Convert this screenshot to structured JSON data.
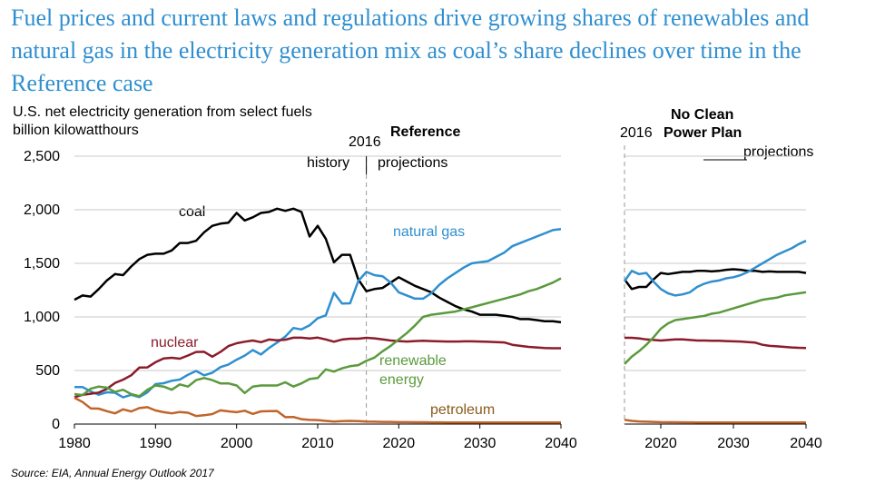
{
  "title": "Fuel prices and current laws and regulations drive growing shares of renewables and natural gas in the electricity generation mix as coal’s share declines over time in the Reference case",
  "source": "Source: EIA, Annual Energy Outlook 2017",
  "chart_data": [
    {
      "type": "line",
      "panel": "Reference",
      "subtitle_line1": "U.S. net electricity generation from select fuels",
      "subtitle_line2": "billion kilowatthours",
      "case_label": "Reference",
      "divider_year_label": "2016",
      "history_label": "history",
      "projections_label": "projections",
      "xlim": [
        1980,
        2040
      ],
      "ylim": [
        0,
        2500
      ],
      "x_ticks": [
        "1980",
        "1990",
        "2000",
        "2010",
        "2020",
        "2030",
        "2040"
      ],
      "y_ticks": [
        "0",
        "500",
        "1,000",
        "1,500",
        "2,000",
        "2,500"
      ],
      "series": [
        {
          "name": "coal",
          "label": "coal",
          "color": "#000000",
          "x": [
            1980,
            1981,
            1982,
            1983,
            1984,
            1985,
            1986,
            1987,
            1988,
            1989,
            1990,
            1991,
            1992,
            1993,
            1994,
            1995,
            1996,
            1997,
            1998,
            1999,
            2000,
            2001,
            2002,
            2003,
            2004,
            2005,
            2006,
            2007,
            2008,
            2009,
            2010,
            2011,
            2012,
            2013,
            2014,
            2015,
            2016,
            2017,
            2018,
            2019,
            2020,
            2021,
            2022,
            2023,
            2024,
            2025,
            2026,
            2027,
            2028,
            2029,
            2030,
            2031,
            2032,
            2033,
            2034,
            2035,
            2036,
            2037,
            2038,
            2039,
            2040
          ],
          "y": [
            1160,
            1200,
            1190,
            1260,
            1340,
            1400,
            1390,
            1470,
            1540,
            1580,
            1590,
            1590,
            1620,
            1690,
            1690,
            1710,
            1790,
            1850,
            1870,
            1880,
            1970,
            1900,
            1930,
            1970,
            1980,
            2010,
            1990,
            2010,
            1980,
            1750,
            1850,
            1730,
            1510,
            1580,
            1580,
            1350,
            1240,
            1260,
            1270,
            1320,
            1370,
            1330,
            1290,
            1260,
            1230,
            1180,
            1140,
            1100,
            1070,
            1050,
            1020,
            1020,
            1020,
            1010,
            1000,
            980,
            980,
            970,
            960,
            960,
            950
          ]
        },
        {
          "name": "natural gas",
          "label": "natural gas",
          "color": "#2f8fd0",
          "x": [
            1980,
            1981,
            1982,
            1983,
            1984,
            1985,
            1986,
            1987,
            1988,
            1989,
            1990,
            1991,
            1992,
            1993,
            1994,
            1995,
            1996,
            1997,
            1998,
            1999,
            2000,
            2001,
            2002,
            2003,
            2004,
            2005,
            2006,
            2007,
            2008,
            2009,
            2010,
            2011,
            2012,
            2013,
            2014,
            2015,
            2016,
            2017,
            2018,
            2019,
            2020,
            2021,
            2022,
            2023,
            2024,
            2025,
            2026,
            2027,
            2028,
            2029,
            2030,
            2031,
            2032,
            2033,
            2034,
            2035,
            2036,
            2037,
            2038,
            2039,
            2040
          ],
          "y": [
            345,
            346,
            305,
            274,
            297,
            292,
            249,
            273,
            252,
            297,
            373,
            381,
            404,
            415,
            460,
            496,
            455,
            479,
            531,
            556,
            601,
            639,
            691,
            649,
            710,
            761,
            816,
            897,
            883,
            921,
            988,
            1014,
            1225,
            1125,
            1127,
            1334,
            1420,
            1390,
            1380,
            1320,
            1230,
            1200,
            1170,
            1170,
            1220,
            1300,
            1360,
            1410,
            1460,
            1500,
            1510,
            1520,
            1560,
            1600,
            1660,
            1690,
            1720,
            1750,
            1780,
            1810,
            1820
          ]
        },
        {
          "name": "nuclear",
          "label": "nuclear",
          "color": "#8b1c2a",
          "x": [
            1980,
            1981,
            1982,
            1983,
            1984,
            1985,
            1986,
            1987,
            1988,
            1989,
            1990,
            1991,
            1992,
            1993,
            1994,
            1995,
            1996,
            1997,
            1998,
            1999,
            2000,
            2001,
            2002,
            2003,
            2004,
            2005,
            2006,
            2007,
            2008,
            2009,
            2010,
            2011,
            2012,
            2013,
            2014,
            2015,
            2016,
            2017,
            2018,
            2019,
            2020,
            2021,
            2022,
            2023,
            2024,
            2025,
            2026,
            2027,
            2028,
            2029,
            2030,
            2031,
            2032,
            2033,
            2034,
            2035,
            2036,
            2037,
            2038,
            2039,
            2040
          ],
          "y": [
            251,
            273,
            283,
            294,
            328,
            384,
            414,
            455,
            527,
            529,
            577,
            613,
            619,
            610,
            640,
            673,
            675,
            629,
            673,
            728,
            754,
            769,
            780,
            764,
            789,
            782,
            787,
            806,
            806,
            799,
            807,
            790,
            769,
            789,
            797,
            797,
            805,
            800,
            790,
            780,
            775,
            770,
            775,
            778,
            775,
            772,
            770,
            770,
            772,
            772,
            770,
            768,
            765,
            762,
            740,
            730,
            720,
            715,
            710,
            708,
            708
          ]
        },
        {
          "name": "renewable energy",
          "label_line1": "renewable",
          "label_line2": "energy",
          "color": "#5a9a3c",
          "x": [
            1980,
            1981,
            1982,
            1983,
            1984,
            1985,
            1986,
            1987,
            1988,
            1989,
            1990,
            1991,
            1992,
            1993,
            1994,
            1995,
            1996,
            1997,
            1998,
            1999,
            2000,
            2001,
            2002,
            2003,
            2004,
            2005,
            2006,
            2007,
            2008,
            2009,
            2010,
            2011,
            2012,
            2013,
            2014,
            2015,
            2016,
            2017,
            2018,
            2019,
            2020,
            2021,
            2022,
            2023,
            2024,
            2025,
            2026,
            2027,
            2028,
            2029,
            2030,
            2031,
            2032,
            2033,
            2034,
            2035,
            2036,
            2037,
            2038,
            2039,
            2040
          ],
          "y": [
            280,
            270,
            330,
            350,
            340,
            300,
            320,
            280,
            260,
            320,
            360,
            350,
            320,
            370,
            350,
            410,
            430,
            410,
            380,
            380,
            360,
            290,
            350,
            360,
            360,
            360,
            390,
            350,
            380,
            420,
            430,
            510,
            490,
            520,
            540,
            550,
            590,
            620,
            680,
            730,
            790,
            850,
            920,
            1000,
            1020,
            1030,
            1040,
            1050,
            1070,
            1090,
            1110,
            1130,
            1150,
            1170,
            1190,
            1210,
            1240,
            1260,
            1290,
            1320,
            1360
          ]
        },
        {
          "name": "petroleum",
          "label": "petroleum",
          "color": "#c0642a",
          "x": [
            1980,
            1981,
            1982,
            1983,
            1984,
            1985,
            1986,
            1987,
            1988,
            1989,
            1990,
            1991,
            1992,
            1993,
            1994,
            1995,
            1996,
            1997,
            1998,
            1999,
            2000,
            2001,
            2002,
            2003,
            2004,
            2005,
            2006,
            2007,
            2008,
            2009,
            2010,
            2011,
            2012,
            2013,
            2014,
            2015,
            2016,
            2017,
            2018,
            2019,
            2020,
            2021,
            2022,
            2023,
            2024,
            2025,
            2026,
            2027,
            2028,
            2029,
            2030,
            2031,
            2032,
            2033,
            2034,
            2035,
            2036,
            2037,
            2038,
            2039,
            2040
          ],
          "y": [
            246,
            206,
            147,
            144,
            120,
            100,
            137,
            118,
            149,
            158,
            127,
            111,
            100,
            113,
            106,
            75,
            82,
            93,
            128,
            119,
            111,
            125,
            95,
            119,
            121,
            122,
            64,
            66,
            46,
            39,
            37,
            30,
            23,
            27,
            30,
            28,
            24,
            22,
            20,
            20,
            18,
            18,
            17,
            17,
            16,
            16,
            15,
            15,
            15,
            15,
            14,
            14,
            14,
            14,
            14,
            14,
            14,
            14,
            14,
            14,
            14
          ]
        }
      ],
      "label_colors": {
        "coal": "#000000",
        "natural gas": "#2f8fd0",
        "nuclear": "#8b1c2a",
        "renewable energy": "#5a9a3c",
        "petroleum": "#8b5a1a"
      }
    },
    {
      "type": "line",
      "panel": "No Clean Power Plan",
      "case_label_line1": "No Clean",
      "case_label_line2": "Power Plan",
      "divider_year_label": "2016",
      "projections_label": "projections",
      "xlim": [
        2015,
        2040
      ],
      "ylim": [
        0,
        2500
      ],
      "x_ticks": [
        "2020",
        "2030",
        "2040"
      ],
      "series": [
        {
          "name": "coal",
          "color": "#000000",
          "x": [
            2015,
            2016,
            2017,
            2018,
            2019,
            2020,
            2021,
            2022,
            2023,
            2024,
            2025,
            2026,
            2027,
            2028,
            2029,
            2030,
            2031,
            2032,
            2033,
            2034,
            2035,
            2036,
            2037,
            2038,
            2039,
            2040
          ],
          "y": [
            1350,
            1260,
            1280,
            1280,
            1350,
            1410,
            1400,
            1410,
            1420,
            1420,
            1430,
            1430,
            1425,
            1430,
            1440,
            1445,
            1440,
            1430,
            1430,
            1420,
            1425,
            1420,
            1420,
            1420,
            1420,
            1410
          ]
        },
        {
          "name": "natural gas",
          "color": "#2f8fd0",
          "x": [
            2015,
            2016,
            2017,
            2018,
            2019,
            2020,
            2021,
            2022,
            2023,
            2024,
            2025,
            2026,
            2027,
            2028,
            2029,
            2030,
            2031,
            2032,
            2033,
            2034,
            2035,
            2036,
            2037,
            2038,
            2039,
            2040
          ],
          "y": [
            1334,
            1430,
            1400,
            1410,
            1330,
            1260,
            1220,
            1200,
            1210,
            1230,
            1280,
            1310,
            1330,
            1340,
            1360,
            1370,
            1390,
            1420,
            1460,
            1500,
            1540,
            1580,
            1610,
            1640,
            1680,
            1710
          ]
        },
        {
          "name": "nuclear",
          "color": "#8b1c2a",
          "x": [
            2015,
            2016,
            2017,
            2018,
            2019,
            2020,
            2021,
            2022,
            2023,
            2024,
            2025,
            2026,
            2027,
            2028,
            2029,
            2030,
            2031,
            2032,
            2033,
            2034,
            2035,
            2036,
            2037,
            2038,
            2039,
            2040
          ],
          "y": [
            805,
            805,
            800,
            790,
            785,
            780,
            785,
            790,
            790,
            785,
            780,
            780,
            778,
            778,
            775,
            772,
            770,
            765,
            760,
            740,
            730,
            725,
            720,
            715,
            712,
            710
          ]
        },
        {
          "name": "renewable energy",
          "color": "#5a9a3c",
          "x": [
            2015,
            2016,
            2017,
            2018,
            2019,
            2020,
            2021,
            2022,
            2023,
            2024,
            2025,
            2026,
            2027,
            2028,
            2029,
            2030,
            2031,
            2032,
            2033,
            2034,
            2035,
            2036,
            2037,
            2038,
            2039,
            2040
          ],
          "y": [
            560,
            630,
            680,
            740,
            810,
            890,
            940,
            970,
            980,
            990,
            1000,
            1010,
            1030,
            1040,
            1060,
            1080,
            1100,
            1120,
            1140,
            1160,
            1170,
            1180,
            1200,
            1210,
            1220,
            1230
          ]
        },
        {
          "name": "petroleum",
          "color": "#c0642a",
          "x": [
            2015,
            2016,
            2017,
            2018,
            2019,
            2020,
            2021,
            2022,
            2023,
            2024,
            2025,
            2026,
            2027,
            2028,
            2029,
            2030,
            2031,
            2032,
            2033,
            2034,
            2035,
            2036,
            2037,
            2038,
            2039,
            2040
          ],
          "y": [
            40,
            30,
            25,
            22,
            20,
            18,
            17,
            17,
            16,
            16,
            15,
            15,
            15,
            15,
            14,
            14,
            14,
            14,
            14,
            14,
            14,
            14,
            14,
            14,
            14,
            14
          ]
        }
      ]
    }
  ]
}
